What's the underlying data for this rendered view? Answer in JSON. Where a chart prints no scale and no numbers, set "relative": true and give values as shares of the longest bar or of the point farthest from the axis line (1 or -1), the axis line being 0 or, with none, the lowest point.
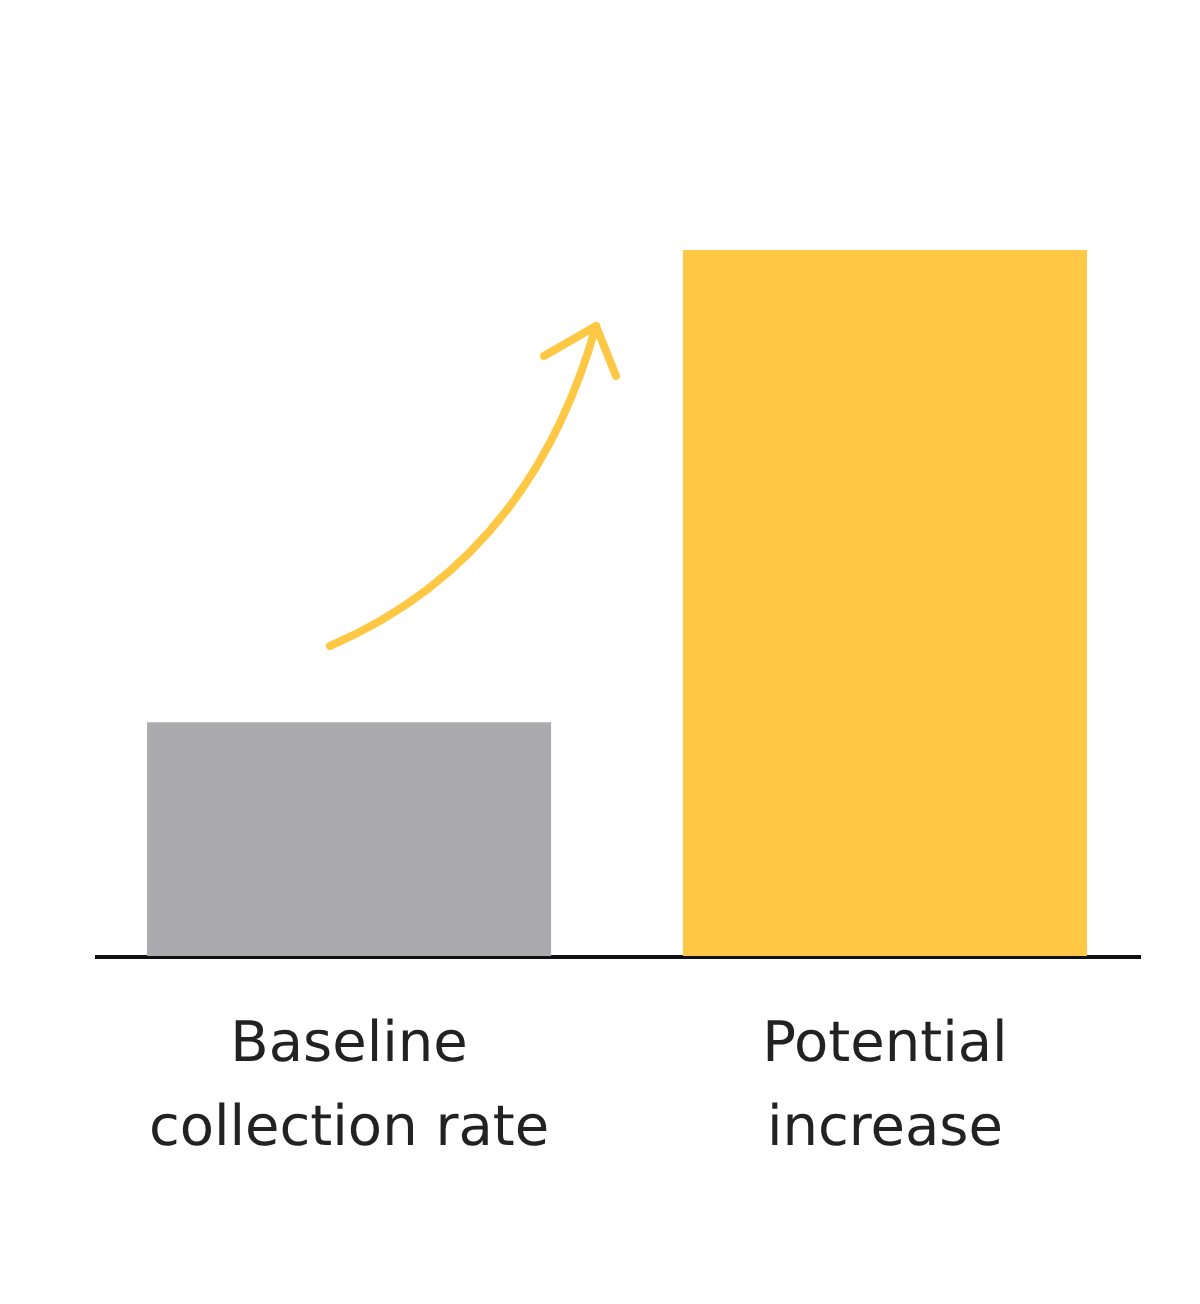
{
  "chart_data": {
    "type": "bar",
    "relative": true,
    "categories": [
      "Baseline collection rate",
      "Potential increase"
    ],
    "values": [
      0.331,
      1
    ],
    "colors": [
      "#ababaf",
      "#fec844"
    ],
    "legend": false
  }
}
